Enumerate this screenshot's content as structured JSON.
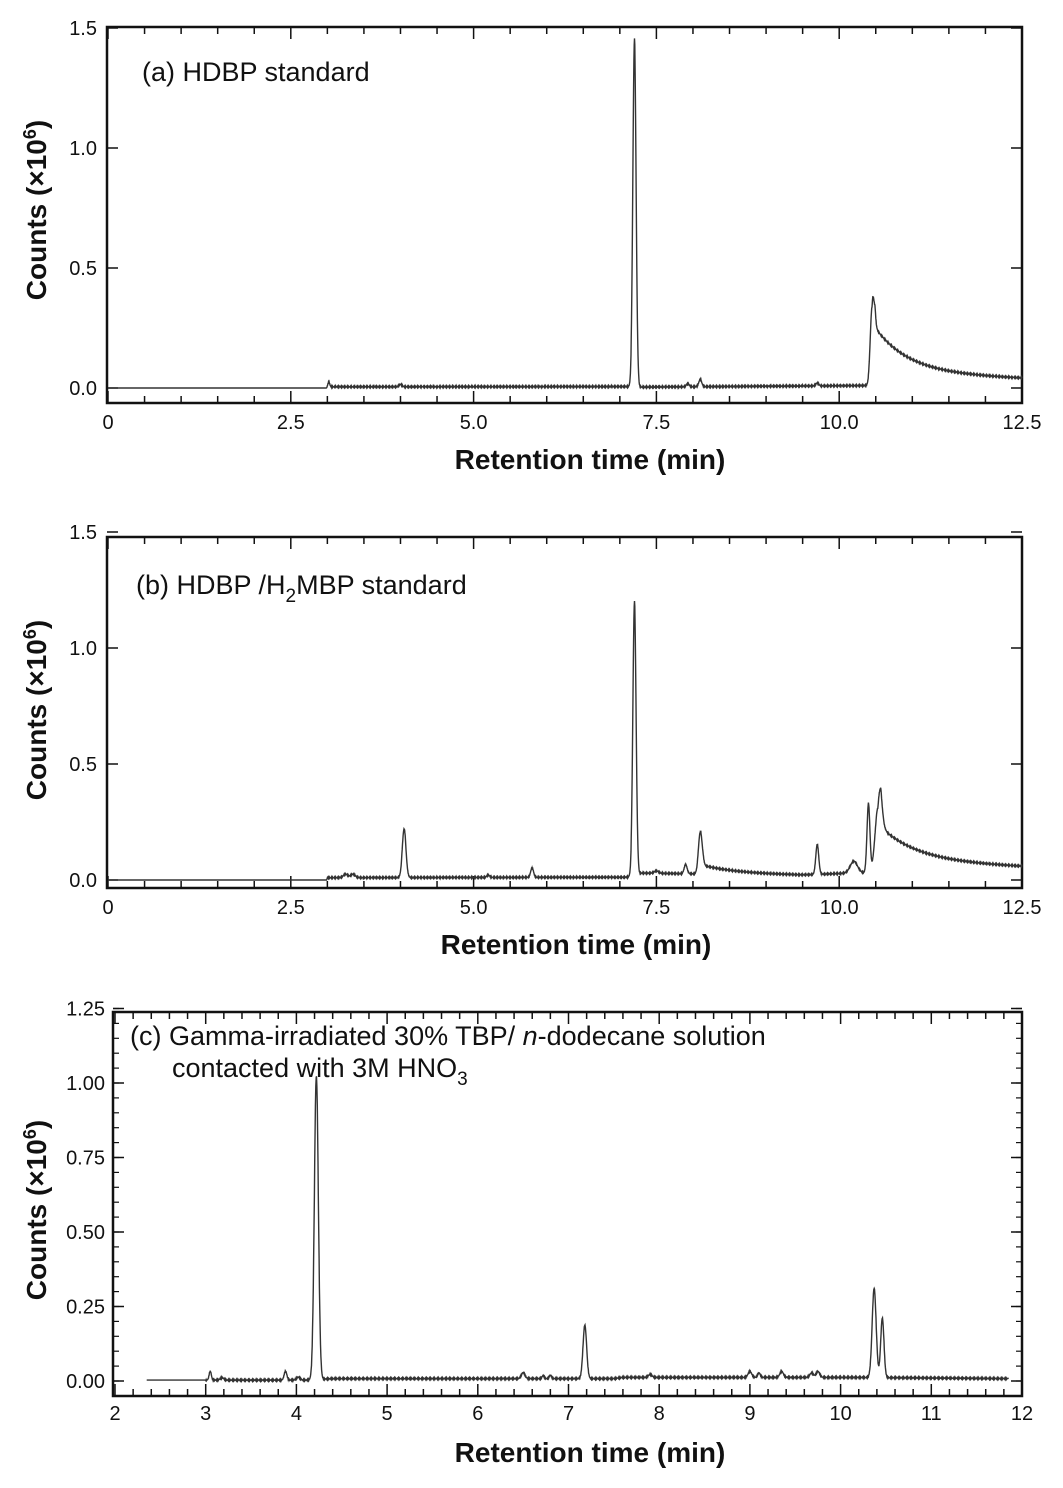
{
  "chart_data": [
    {
      "type": "line",
      "panel_label": "(a) HDBP standard",
      "xlabel": "Retention time (min)",
      "ylabel": "Counts (×10",
      "ylabel_sup": "6",
      "ylabel_end": ")",
      "xlim": [
        0,
        12.5
      ],
      "ylim": [
        -0.06,
        1.5
      ],
      "xticks": [
        0,
        2.5,
        5.0,
        7.5,
        10.0,
        12.5
      ],
      "xtick_labels": [
        "0",
        "2.5",
        "5.0",
        "7.5",
        "10.0",
        "12.5"
      ],
      "yticks": [
        0,
        0.5,
        1.0,
        1.5
      ],
      "ytick_labels": [
        "0.0",
        "0.5",
        "1.0",
        "1.5"
      ],
      "x_range": [
        0,
        12.5
      ],
      "baseline": [
        [
          0,
          0.0
        ],
        [
          2.99,
          0.0
        ],
        [
          3.0,
          0.005
        ],
        [
          7.1,
          0.006
        ],
        [
          7.3,
          0.004
        ],
        [
          10.3,
          0.01
        ],
        [
          12.5,
          0.01
        ]
      ],
      "peaks": [
        [
          3.02,
          0.02,
          0.012
        ],
        [
          4.0,
          0.01,
          0.02
        ],
        [
          7.2,
          1.45,
          0.022
        ],
        [
          7.93,
          0.012,
          0.02
        ],
        [
          8.1,
          0.03,
          0.02
        ],
        [
          9.7,
          0.012,
          0.02
        ],
        [
          10.45,
          0.33,
          0.025
        ]
      ],
      "tails": [
        [
          10.45,
          0.2,
          0.45
        ],
        [
          10.45,
          0.06,
          3.0
        ]
      ]
    },
    {
      "type": "line",
      "panel_label_pre": "(b) HDBP /H",
      "panel_label_sub": "2",
      "panel_label_post": "MBP standard",
      "xlabel": "Retention time (min)",
      "ylabel": "Counts (×10",
      "ylabel_sup": "6",
      "ylabel_end": ")",
      "xlim": [
        0,
        12.5
      ],
      "ylim": [
        -0.04,
        1.5
      ],
      "xticks": [
        0,
        2.5,
        5.0,
        7.5,
        10.0,
        12.5
      ],
      "xtick_labels": [
        "0",
        "2.5",
        "5.0",
        "7.5",
        "10.0",
        "12.5"
      ],
      "yticks": [
        0,
        0.5,
        1.0,
        1.5
      ],
      "ytick_labels": [
        "0.0",
        "0.5",
        "1.0",
        "1.5"
      ],
      "x_range": [
        0,
        12.5
      ],
      "baseline": [
        [
          0,
          0.0
        ],
        [
          2.99,
          0.0
        ],
        [
          3.0,
          0.01
        ],
        [
          7.1,
          0.012
        ],
        [
          7.3,
          0.03
        ],
        [
          9.5,
          0.02
        ],
        [
          10.2,
          0.03
        ],
        [
          12.5,
          0.03
        ]
      ],
      "peaks": [
        [
          3.25,
          0.015,
          0.03
        ],
        [
          3.35,
          0.015,
          0.03
        ],
        [
          4.05,
          0.21,
          0.025
        ],
        [
          5.2,
          0.01,
          0.02
        ],
        [
          5.8,
          0.04,
          0.02
        ],
        [
          7.2,
          1.18,
          0.022
        ],
        [
          7.5,
          0.01,
          0.03
        ],
        [
          7.9,
          0.04,
          0.02
        ],
        [
          8.1,
          0.18,
          0.025
        ],
        [
          9.7,
          0.13,
          0.02
        ],
        [
          10.2,
          0.05,
          0.05
        ],
        [
          10.4,
          0.3,
          0.02
        ],
        [
          10.53,
          0.28,
          0.04
        ]
      ],
      "tails": [
        [
          8.1,
          0.04,
          0.5
        ],
        [
          10.53,
          0.15,
          0.5
        ],
        [
          10.53,
          0.06,
          2.5
        ]
      ]
    },
    {
      "type": "line",
      "panel_label_pre": "(c) Gamma-irradiated 30% TBP/ ",
      "panel_label_italic": "n",
      "panel_label_mid": "-dodecane solution",
      "panel_label_line2": "contacted with 3M HNO",
      "panel_label_line2_sub": "3",
      "xlabel": "Retention time (min)",
      "ylabel": "Counts (×10",
      "ylabel_sup": "6",
      "ylabel_end": ")",
      "xlim": [
        2,
        12
      ],
      "ylim": [
        -0.1,
        1.25
      ],
      "xticks": [
        2,
        3,
        4,
        5,
        6,
        7,
        8,
        9,
        10,
        11,
        12
      ],
      "xtick_labels": [
        "2",
        "3",
        "4",
        "5",
        "6",
        "7",
        "8",
        "9",
        "10",
        "11",
        "12"
      ],
      "yticks": [
        0,
        0.25,
        0.5,
        0.75,
        1.0,
        1.25
      ],
      "ytick_labels": [
        "0.00",
        "0.25",
        "0.50",
        "0.75",
        "1.00",
        "1.25"
      ],
      "x_range": [
        2.35,
        11.85
      ],
      "baseline": [
        [
          2.35,
          0.003
        ],
        [
          4.1,
          0.003
        ],
        [
          4.4,
          0.008
        ],
        [
          7.5,
          0.008
        ],
        [
          7.6,
          0.012
        ],
        [
          10.2,
          0.012
        ],
        [
          11.85,
          0.008
        ]
      ],
      "peaks": [
        [
          3.05,
          0.03,
          0.012
        ],
        [
          3.18,
          0.008,
          0.02
        ],
        [
          3.88,
          0.03,
          0.015
        ],
        [
          4.02,
          0.01,
          0.02
        ],
        [
          4.22,
          1.02,
          0.022
        ],
        [
          6.5,
          0.02,
          0.02
        ],
        [
          6.72,
          0.01,
          0.012
        ],
        [
          6.8,
          0.012,
          0.012
        ],
        [
          7.18,
          0.18,
          0.02
        ],
        [
          7.9,
          0.01,
          0.02
        ],
        [
          9.0,
          0.02,
          0.02
        ],
        [
          9.1,
          0.015,
          0.015
        ],
        [
          9.35,
          0.02,
          0.02
        ],
        [
          9.68,
          0.015,
          0.02
        ],
        [
          9.75,
          0.02,
          0.02
        ],
        [
          10.37,
          0.3,
          0.022
        ],
        [
          10.46,
          0.2,
          0.018
        ]
      ],
      "tails": []
    }
  ]
}
